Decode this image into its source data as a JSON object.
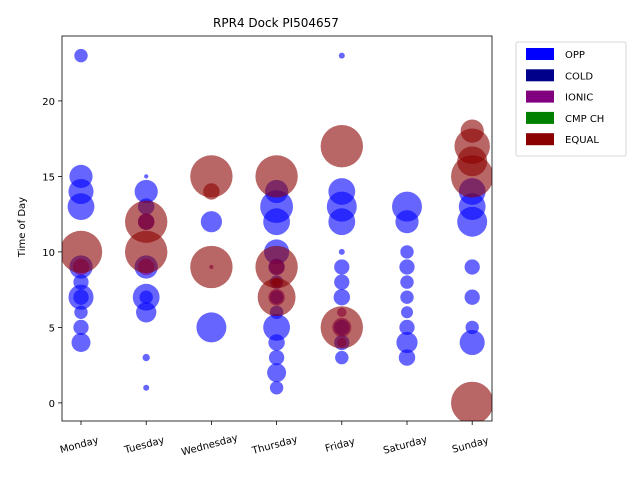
{
  "chart_data": {
    "type": "scatter",
    "title": "RPR4 Dock PI504657",
    "xlabel": "",
    "ylabel": "Time of Day",
    "categories": [
      "Monday",
      "Tuesday",
      "Wednesday",
      "Thursday",
      "Friday",
      "Saturday",
      "Sunday"
    ],
    "ylim": [
      -1.2,
      24.3
    ],
    "yticks": [
      0,
      5,
      10,
      15,
      20
    ],
    "grid": false,
    "legend_position": "upper-right-outside",
    "legend": [
      {
        "name": "OPP",
        "color": "#0000ff"
      },
      {
        "name": "COLD",
        "color": "#00008b"
      },
      {
        "name": "IONIC",
        "color": "#800080"
      },
      {
        "name": "CMP CH",
        "color": "#008000"
      },
      {
        "name": "EQUAL",
        "color": "#8b0000"
      }
    ],
    "series": [
      {
        "name": "OPP",
        "color": "#0000ff",
        "points": [
          {
            "x": "Monday",
            "y": 23,
            "size": 1
          },
          {
            "x": "Monday",
            "y": 15,
            "size": 3
          },
          {
            "x": "Monday",
            "y": 14,
            "size": 3.5
          },
          {
            "x": "Monday",
            "y": 13,
            "size": 4
          },
          {
            "x": "Monday",
            "y": 9,
            "size": 3
          },
          {
            "x": "Monday",
            "y": 8,
            "size": 1.3
          },
          {
            "x": "Monday",
            "y": 7,
            "size": 3.5
          },
          {
            "x": "Monday",
            "y": 7,
            "size": 1.3
          },
          {
            "x": "Monday",
            "y": 6,
            "size": 1
          },
          {
            "x": "Monday",
            "y": 5,
            "size": 1.3
          },
          {
            "x": "Monday",
            "y": 4,
            "size": 2
          },
          {
            "x": "Tuesday",
            "y": 15,
            "size": 0.1
          },
          {
            "x": "Tuesday",
            "y": 14,
            "size": 3
          },
          {
            "x": "Tuesday",
            "y": 13,
            "size": 1.5
          },
          {
            "x": "Tuesday",
            "y": 12,
            "size": 1.5
          },
          {
            "x": "Tuesday",
            "y": 9,
            "size": 3
          },
          {
            "x": "Tuesday",
            "y": 7,
            "size": 4
          },
          {
            "x": "Tuesday",
            "y": 7,
            "size": 1
          },
          {
            "x": "Tuesday",
            "y": 6,
            "size": 2.3
          },
          {
            "x": "Tuesday",
            "y": 3,
            "size": 0.3
          },
          {
            "x": "Tuesday",
            "y": 1,
            "size": 0.2
          },
          {
            "x": "Wednesday",
            "y": 12,
            "size": 2.5
          },
          {
            "x": "Wednesday",
            "y": 5,
            "size": 5
          },
          {
            "x": "Thursday",
            "y": 14,
            "size": 3
          },
          {
            "x": "Thursday",
            "y": 13,
            "size": 6
          },
          {
            "x": "Thursday",
            "y": 12,
            "size": 4
          },
          {
            "x": "Thursday",
            "y": 10,
            "size": 3.5
          },
          {
            "x": "Thursday",
            "y": 9,
            "size": 1.5
          },
          {
            "x": "Thursday",
            "y": 8,
            "size": 1
          },
          {
            "x": "Thursday",
            "y": 7,
            "size": 1
          },
          {
            "x": "Thursday",
            "y": 6,
            "size": 1
          },
          {
            "x": "Thursday",
            "y": 5,
            "size": 4
          },
          {
            "x": "Thursday",
            "y": 4,
            "size": 1.5
          },
          {
            "x": "Thursday",
            "y": 3,
            "size": 1.3
          },
          {
            "x": "Thursday",
            "y": 2,
            "size": 2
          },
          {
            "x": "Thursday",
            "y": 1,
            "size": 1
          },
          {
            "x": "Friday",
            "y": 23,
            "size": 0.2
          },
          {
            "x": "Friday",
            "y": 14,
            "size": 4
          },
          {
            "x": "Friday",
            "y": 13,
            "size": 5
          },
          {
            "x": "Friday",
            "y": 12,
            "size": 4
          },
          {
            "x": "Friday",
            "y": 10,
            "size": 0.2
          },
          {
            "x": "Friday",
            "y": 9,
            "size": 1.3
          },
          {
            "x": "Friday",
            "y": 8,
            "size": 1.3
          },
          {
            "x": "Friday",
            "y": 7,
            "size": 1.5
          },
          {
            "x": "Friday",
            "y": 5,
            "size": 1.3
          },
          {
            "x": "Friday",
            "y": 4,
            "size": 1.3
          },
          {
            "x": "Friday",
            "y": 3,
            "size": 1
          },
          {
            "x": "Saturday",
            "y": 13,
            "size": 5
          },
          {
            "x": "Saturday",
            "y": 12,
            "size": 3
          },
          {
            "x": "Saturday",
            "y": 10,
            "size": 1
          },
          {
            "x": "Saturday",
            "y": 9,
            "size": 1.3
          },
          {
            "x": "Saturday",
            "y": 8,
            "size": 1
          },
          {
            "x": "Saturday",
            "y": 7,
            "size": 1
          },
          {
            "x": "Saturday",
            "y": 6,
            "size": 0.8
          },
          {
            "x": "Saturday",
            "y": 5,
            "size": 1.3
          },
          {
            "x": "Saturday",
            "y": 4,
            "size": 2.5
          },
          {
            "x": "Saturday",
            "y": 3,
            "size": 1.5
          },
          {
            "x": "Sunday",
            "y": 14,
            "size": 4
          },
          {
            "x": "Sunday",
            "y": 13,
            "size": 4
          },
          {
            "x": "Sunday",
            "y": 12,
            "size": 5
          },
          {
            "x": "Sunday",
            "y": 9,
            "size": 1.3
          },
          {
            "x": "Sunday",
            "y": 7,
            "size": 1.3
          },
          {
            "x": "Sunday",
            "y": 5,
            "size": 1
          },
          {
            "x": "Sunday",
            "y": 4,
            "size": 3.5
          }
        ]
      },
      {
        "name": "IONIC",
        "color": "#800080",
        "points": [
          {
            "x": "Monday",
            "y": 9,
            "size": 1.5
          },
          {
            "x": "Tuesday",
            "y": 12,
            "size": 1.5
          },
          {
            "x": "Tuesday",
            "y": 9,
            "size": 1.5
          },
          {
            "x": "Wednesday",
            "y": 9,
            "size": 0.1
          },
          {
            "x": "Thursday",
            "y": 9,
            "size": 1.3
          },
          {
            "x": "Thursday",
            "y": 7,
            "size": 1.5
          },
          {
            "x": "Friday",
            "y": 6,
            "size": 0.5
          },
          {
            "x": "Friday",
            "y": 5,
            "size": 2
          },
          {
            "x": "Friday",
            "y": 4,
            "size": 0.5
          }
        ]
      },
      {
        "name": "EQUAL",
        "color": "#8b0000",
        "points": [
          {
            "x": "Monday",
            "y": 10,
            "size": 10
          },
          {
            "x": "Tuesday",
            "y": 12,
            "size": 10
          },
          {
            "x": "Tuesday",
            "y": 10,
            "size": 10
          },
          {
            "x": "Wednesday",
            "y": 15,
            "size": 10
          },
          {
            "x": "Wednesday",
            "y": 14,
            "size": 1.5
          },
          {
            "x": "Wednesday",
            "y": 9,
            "size": 10
          },
          {
            "x": "Thursday",
            "y": 15,
            "size": 10
          },
          {
            "x": "Thursday",
            "y": 9,
            "size": 10
          },
          {
            "x": "Thursday",
            "y": 8,
            "size": 0.5
          },
          {
            "x": "Thursday",
            "y": 7,
            "size": 8
          },
          {
            "x": "Friday",
            "y": 17,
            "size": 10
          },
          {
            "x": "Friday",
            "y": 5,
            "size": 10
          },
          {
            "x": "Sunday",
            "y": 18,
            "size": 3
          },
          {
            "x": "Sunday",
            "y": 17,
            "size": 7
          },
          {
            "x": "Sunday",
            "y": 16,
            "size": 5
          },
          {
            "x": "Sunday",
            "y": 15,
            "size": 10
          },
          {
            "x": "Sunday",
            "y": 0,
            "size": 10
          }
        ]
      }
    ]
  }
}
